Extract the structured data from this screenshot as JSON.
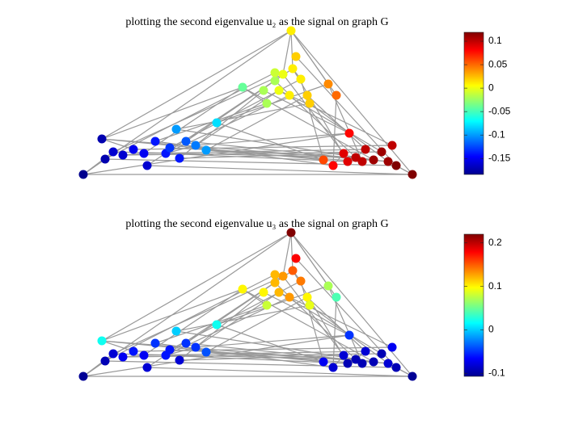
{
  "chart_data": [
    {
      "type": "graph",
      "title": "plotting the second eigenvalue u₂ as the signal on graph G",
      "colormap": "jet",
      "edge_color": "#999999",
      "xlim": [
        0,
        407
      ],
      "ylim": [
        0,
        178
      ],
      "x": [
        257,
        0,
        407,
        23,
        37,
        49,
        27,
        62,
        75,
        89,
        102,
        115,
        127,
        139,
        152,
        119,
        79,
        165,
        107,
        197,
        227,
        237,
        247,
        259,
        269,
        242,
        255,
        277,
        280,
        263,
        303,
        313,
        297,
        309,
        322,
        329,
        337,
        349,
        359,
        369,
        377,
        387,
        382,
        345,
        327,
        237,
        223
      ],
      "y": [
        178,
        0,
        0,
        44,
        28,
        24,
        19,
        31,
        26,
        41,
        26,
        56,
        41,
        36,
        30,
        20,
        11,
        64,
        33,
        108,
        88,
        116,
        124,
        131,
        118,
        104,
        98,
        98,
        88,
        146,
        112,
        98,
        18,
        11,
        26,
        51,
        21,
        31,
        18,
        28,
        16,
        11,
        36,
        16,
        16,
        126,
        104
      ],
      "values": [
        0.01,
        -0.18,
        0.12,
        -0.17,
        -0.16,
        -0.16,
        -0.17,
        -0.15,
        -0.15,
        -0.14,
        -0.14,
        -0.1,
        -0.12,
        -0.11,
        -0.1,
        -0.14,
        -0.16,
        -0.08,
        -0.13,
        -0.04,
        -0.02,
        -0.02,
        0,
        0.01,
        0.01,
        0,
        0.01,
        0.02,
        0.02,
        0.02,
        0.04,
        0.05,
        0.06,
        0.08,
        0.09,
        0.08,
        0.1,
        0.1,
        0.11,
        0.11,
        0.11,
        0.12,
        0.1,
        0.1,
        0.09,
        -0.01,
        -0.02
      ],
      "edges": [
        [
          0,
          3
        ],
        [
          0,
          1
        ],
        [
          19,
          3
        ],
        [
          19,
          8
        ],
        [
          20,
          9
        ],
        [
          21,
          12
        ],
        [
          22,
          4
        ],
        [
          25,
          13
        ],
        [
          26,
          10
        ],
        [
          27,
          14
        ],
        [
          45,
          6
        ],
        [
          46,
          15
        ],
        [
          30,
          17
        ],
        [
          28,
          11
        ],
        [
          23,
          16
        ],
        [
          24,
          18
        ],
        [
          0,
          2
        ],
        [
          0,
          30
        ],
        [
          0,
          31
        ],
        [
          21,
          36
        ],
        [
          22,
          34
        ],
        [
          25,
          39
        ],
        [
          26,
          42
        ],
        [
          27,
          37
        ],
        [
          28,
          40
        ],
        [
          29,
          41
        ],
        [
          31,
          33
        ],
        [
          30,
          43
        ],
        [
          46,
          35
        ],
        [
          19,
          38
        ],
        [
          23,
          44
        ],
        [
          24,
          32
        ],
        [
          1,
          2
        ],
        [
          3,
          32
        ],
        [
          4,
          36
        ],
        [
          5,
          39
        ],
        [
          6,
          41
        ],
        [
          7,
          42
        ],
        [
          8,
          37
        ],
        [
          9,
          33
        ],
        [
          10,
          44
        ],
        [
          11,
          38
        ],
        [
          12,
          40
        ],
        [
          13,
          35
        ],
        [
          14,
          43
        ],
        [
          15,
          34
        ],
        [
          16,
          2
        ],
        [
          17,
          32
        ],
        [
          18,
          36
        ],
        [
          1,
          35
        ],
        [
          3,
          40
        ],
        [
          1,
          4
        ],
        [
          1,
          6
        ],
        [
          3,
          7
        ],
        [
          5,
          8
        ],
        [
          10,
          13
        ],
        [
          12,
          14
        ],
        [
          2,
          41
        ],
        [
          2,
          40
        ],
        [
          33,
          34
        ],
        [
          36,
          37
        ],
        [
          19,
          20
        ],
        [
          21,
          22
        ],
        [
          23,
          24
        ],
        [
          0,
          22
        ],
        [
          0,
          23
        ],
        [
          25,
          26
        ],
        [
          27,
          28
        ]
      ],
      "clim": [
        -0.184,
        0.119
      ],
      "cticks": [
        0.1,
        0.05,
        0,
        -0.05,
        -0.1,
        -0.15
      ]
    },
    {
      "type": "graph",
      "title": "plotting the second eigenvalue u₃ as the signal on graph G",
      "colormap": "jet",
      "edge_color": "#999999",
      "xlim": [
        0,
        407
      ],
      "ylim": [
        0,
        178
      ],
      "x": [
        257,
        0,
        407,
        23,
        37,
        49,
        27,
        62,
        75,
        89,
        102,
        115,
        127,
        139,
        152,
        119,
        79,
        165,
        107,
        197,
        227,
        237,
        247,
        259,
        269,
        242,
        255,
        277,
        280,
        263,
        303,
        313,
        297,
        309,
        322,
        329,
        337,
        349,
        359,
        369,
        377,
        387,
        382,
        345,
        327,
        237,
        223
      ],
      "y": [
        178,
        0,
        0,
        44,
        28,
        24,
        19,
        31,
        26,
        41,
        26,
        56,
        41,
        36,
        30,
        20,
        11,
        64,
        33,
        108,
        88,
        116,
        124,
        131,
        118,
        104,
        98,
        98,
        88,
        146,
        112,
        98,
        18,
        11,
        26,
        51,
        21,
        31,
        18,
        28,
        16,
        11,
        36,
        16,
        16,
        126,
        104
      ],
      "values": [
        0.22,
        -0.1,
        -0.1,
        0.02,
        -0.08,
        -0.07,
        -0.09,
        -0.06,
        -0.07,
        -0.05,
        -0.06,
        0,
        -0.05,
        -0.05,
        -0.04,
        -0.08,
        -0.08,
        0.02,
        -0.06,
        0.1,
        0.08,
        0.12,
        0.13,
        0.15,
        0.14,
        0.12,
        0.13,
        0.1,
        0.09,
        0.18,
        0.07,
        0.04,
        -0.07,
        -0.08,
        -0.08,
        -0.05,
        -0.09,
        -0.08,
        -0.09,
        -0.09,
        -0.08,
        -0.09,
        -0.07,
        -0.09,
        -0.09,
        0.12,
        0.1
      ],
      "edges": [
        [
          0,
          3
        ],
        [
          0,
          1
        ],
        [
          19,
          3
        ],
        [
          19,
          8
        ],
        [
          20,
          9
        ],
        [
          21,
          12
        ],
        [
          22,
          4
        ],
        [
          25,
          13
        ],
        [
          26,
          10
        ],
        [
          27,
          14
        ],
        [
          45,
          6
        ],
        [
          46,
          15
        ],
        [
          30,
          17
        ],
        [
          28,
          11
        ],
        [
          23,
          16
        ],
        [
          24,
          18
        ],
        [
          0,
          2
        ],
        [
          0,
          30
        ],
        [
          0,
          31
        ],
        [
          21,
          36
        ],
        [
          22,
          34
        ],
        [
          25,
          39
        ],
        [
          26,
          42
        ],
        [
          27,
          37
        ],
        [
          28,
          40
        ],
        [
          29,
          41
        ],
        [
          31,
          33
        ],
        [
          30,
          43
        ],
        [
          46,
          35
        ],
        [
          19,
          38
        ],
        [
          23,
          44
        ],
        [
          24,
          32
        ],
        [
          1,
          2
        ],
        [
          3,
          32
        ],
        [
          4,
          36
        ],
        [
          5,
          39
        ],
        [
          6,
          41
        ],
        [
          7,
          42
        ],
        [
          8,
          37
        ],
        [
          9,
          33
        ],
        [
          10,
          44
        ],
        [
          11,
          38
        ],
        [
          12,
          40
        ],
        [
          13,
          35
        ],
        [
          14,
          43
        ],
        [
          15,
          34
        ],
        [
          16,
          2
        ],
        [
          17,
          32
        ],
        [
          18,
          36
        ],
        [
          1,
          35
        ],
        [
          3,
          40
        ],
        [
          1,
          4
        ],
        [
          1,
          6
        ],
        [
          3,
          7
        ],
        [
          5,
          8
        ],
        [
          10,
          13
        ],
        [
          12,
          14
        ],
        [
          2,
          41
        ],
        [
          2,
          40
        ],
        [
          33,
          34
        ],
        [
          36,
          37
        ],
        [
          19,
          20
        ],
        [
          21,
          22
        ],
        [
          23,
          24
        ],
        [
          0,
          22
        ],
        [
          0,
          23
        ],
        [
          25,
          26
        ],
        [
          27,
          28
        ]
      ],
      "clim": [
        -0.107,
        0.22
      ],
      "cticks": [
        0.2,
        0.1,
        0,
        -0.1
      ]
    }
  ]
}
